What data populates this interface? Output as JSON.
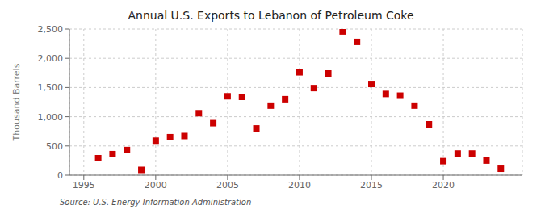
{
  "chart_data": {
    "type": "scatter",
    "title": "Annual U.S. Exports to Lebanon of Petroleum Coke",
    "ylabel": "Thousand Barrels",
    "source": "Source: U.S. Energy Information Administration",
    "x": [
      1996,
      1997,
      1998,
      1999,
      2000,
      2001,
      2002,
      2003,
      2004,
      2005,
      2006,
      2007,
      2008,
      2009,
      2010,
      2011,
      2012,
      2013,
      2014,
      2015,
      2016,
      2017,
      2018,
      2019,
      2020,
      2021,
      2022,
      2023,
      2024
    ],
    "values": [
      290,
      360,
      430,
      90,
      590,
      650,
      670,
      1060,
      890,
      1350,
      1340,
      800,
      1190,
      1300,
      1760,
      1490,
      1740,
      2460,
      2280,
      1560,
      1390,
      1360,
      1190,
      870,
      240,
      370,
      370,
      250,
      110
    ],
    "color": "#cc0000",
    "marker": "square",
    "xlim": [
      1994.0,
      2025.5
    ],
    "xticks": [
      1995,
      2000,
      2005,
      2010,
      2015,
      2020
    ],
    "ylim": [
      0,
      2500
    ],
    "yticks": [
      0,
      500,
      {
        "value": 1000,
        "label": "1,000"
      },
      {
        "value": 1500,
        "label": "1,500"
      },
      {
        "value": 2000,
        "label": "2,000"
      },
      {
        "value": 2500,
        "label": "2,500"
      }
    ],
    "grid": true
  }
}
